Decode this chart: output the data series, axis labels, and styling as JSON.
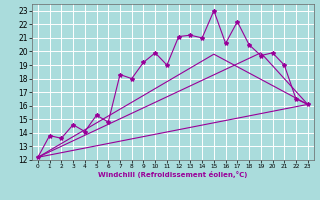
{
  "xlabel": "Windchill (Refroidissement éolien,°C)",
  "bg_color": "#aadcdc",
  "line_color": "#990099",
  "grid_color": "#ffffff",
  "xlim": [
    -0.5,
    23.5
  ],
  "ylim": [
    12,
    23.5
  ],
  "xticks": [
    0,
    1,
    2,
    3,
    4,
    5,
    6,
    7,
    8,
    9,
    10,
    11,
    12,
    13,
    14,
    15,
    16,
    17,
    18,
    19,
    20,
    21,
    22,
    23
  ],
  "yticks": [
    12,
    13,
    14,
    15,
    16,
    17,
    18,
    19,
    20,
    21,
    22,
    23
  ],
  "line1_x": [
    0,
    1,
    2,
    3,
    4,
    5,
    6,
    7,
    8,
    9,
    10,
    11,
    12,
    13,
    14,
    15,
    16,
    17,
    18,
    19,
    20,
    21,
    22,
    23
  ],
  "line1_y": [
    12.2,
    13.8,
    13.6,
    14.6,
    14.1,
    15.3,
    14.8,
    18.3,
    18.0,
    19.2,
    19.9,
    19.0,
    21.1,
    21.2,
    21.0,
    23.0,
    20.6,
    22.2,
    20.5,
    19.7,
    19.9,
    19.0,
    16.5,
    16.1
  ],
  "line2_x": [
    0,
    23
  ],
  "line2_y": [
    12.2,
    16.1
  ],
  "line3_x": [
    0,
    15,
    23
  ],
  "line3_y": [
    12.2,
    19.8,
    16.1
  ],
  "line4_x": [
    0,
    19,
    23
  ],
  "line4_y": [
    12.2,
    19.9,
    16.1
  ]
}
